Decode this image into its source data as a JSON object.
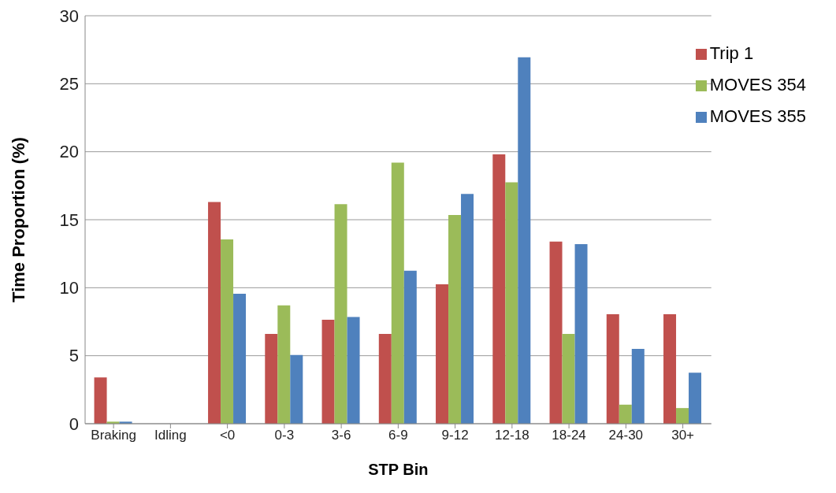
{
  "chart_data": {
    "type": "bar",
    "xlabel": "STP Bin",
    "ylabel": "Time Proportion (%)",
    "categories": [
      "Braking",
      "Idling",
      "<0",
      "0-3",
      "3-6",
      "6-9",
      "9-12",
      "12-18",
      "18-24",
      "24-30",
      "30+"
    ],
    "series": [
      {
        "name": "Trip 1",
        "color": "#c0504d",
        "values": [
          3.4,
          0,
          16.3,
          6.6,
          7.65,
          6.6,
          10.25,
          19.8,
          13.4,
          8.05,
          8.05
        ]
      },
      {
        "name": "MOVES 354",
        "color": "#9bbb59",
        "values": [
          0.15,
          0,
          13.55,
          8.7,
          16.15,
          19.2,
          15.35,
          17.75,
          6.6,
          1.4,
          1.15
        ]
      },
      {
        "name": "MOVES 355",
        "color": "#4f81bd",
        "values": [
          0.15,
          0,
          9.55,
          5.05,
          7.85,
          11.25,
          16.9,
          26.95,
          13.2,
          5.5,
          3.75
        ]
      }
    ],
    "ylim": [
      0,
      30
    ],
    "yticks": [
      0,
      5,
      10,
      15,
      20,
      25,
      30
    ],
    "grid": "y",
    "legend": "top right"
  }
}
